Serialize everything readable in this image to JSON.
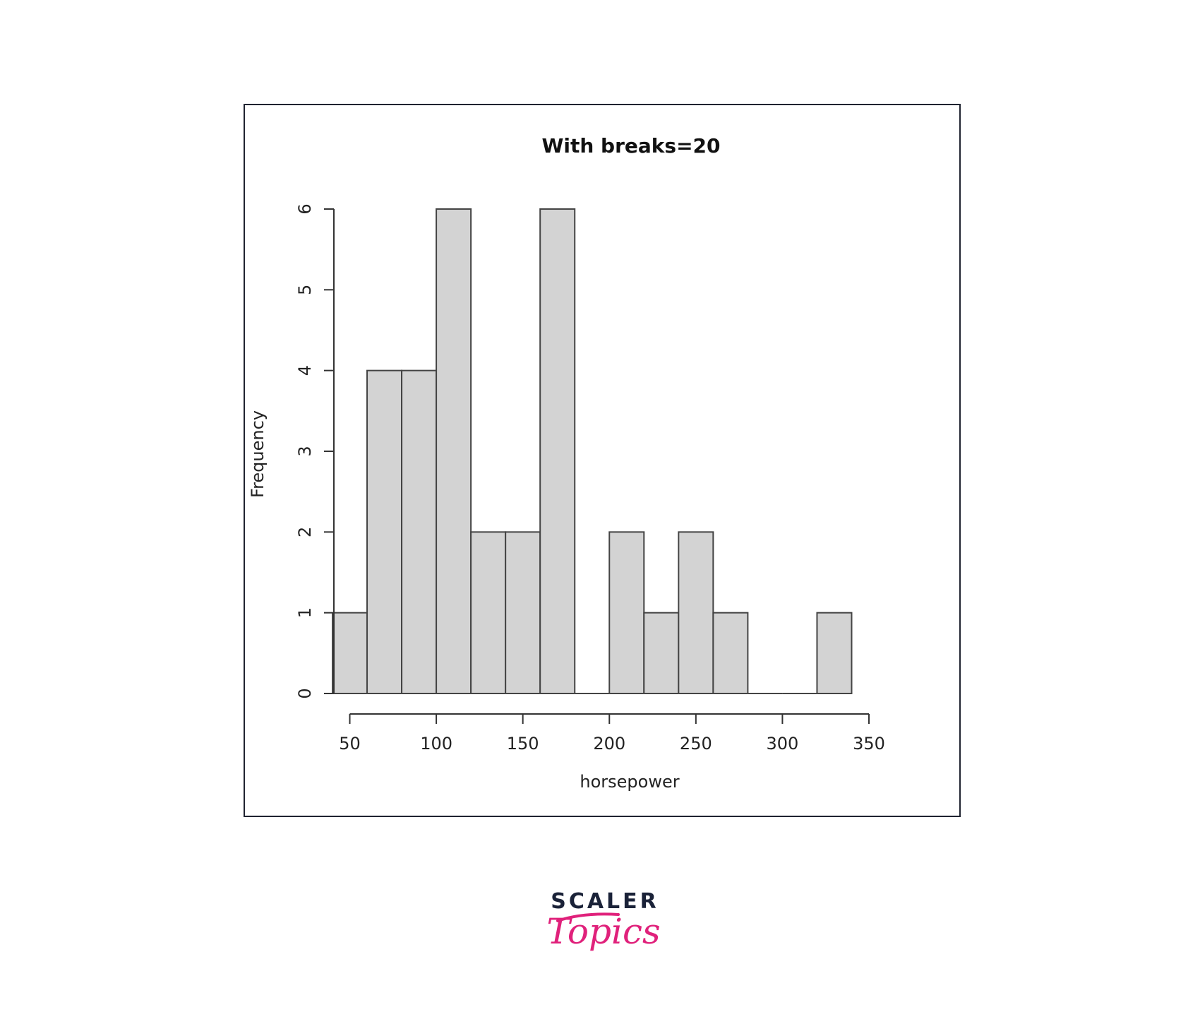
{
  "chart_data": {
    "type": "bar",
    "subtype": "histogram",
    "title": "With breaks=20",
    "xlabel": "horsepower",
    "ylabel": "Frequency",
    "bins": [
      {
        "start": 40,
        "end": 60,
        "value": 1
      },
      {
        "start": 60,
        "end": 80,
        "value": 4
      },
      {
        "start": 80,
        "end": 100,
        "value": 4
      },
      {
        "start": 100,
        "end": 120,
        "value": 6
      },
      {
        "start": 120,
        "end": 140,
        "value": 2
      },
      {
        "start": 140,
        "end": 160,
        "value": 2
      },
      {
        "start": 160,
        "end": 180,
        "value": 6
      },
      {
        "start": 180,
        "end": 200,
        "value": 0
      },
      {
        "start": 200,
        "end": 220,
        "value": 2
      },
      {
        "start": 220,
        "end": 240,
        "value": 1
      },
      {
        "start": 240,
        "end": 260,
        "value": 2
      },
      {
        "start": 260,
        "end": 280,
        "value": 1
      },
      {
        "start": 280,
        "end": 300,
        "value": 0
      },
      {
        "start": 300,
        "end": 320,
        "value": 0
      },
      {
        "start": 320,
        "end": 340,
        "value": 1
      }
    ],
    "xticks": [
      50,
      100,
      150,
      200,
      250,
      300,
      350
    ],
    "yticks": [
      0,
      1,
      2,
      3,
      4,
      5,
      6
    ],
    "xlim": [
      40,
      350
    ],
    "ylim": [
      0,
      6
    ],
    "grid": false,
    "legend": "none",
    "bar_fill": "#d3d3d3",
    "bar_stroke": "#444444"
  },
  "logo": {
    "line1": "SCALER",
    "line2": "Topics",
    "line1_color": "#1a2238",
    "line2_color": "#e0217b"
  }
}
